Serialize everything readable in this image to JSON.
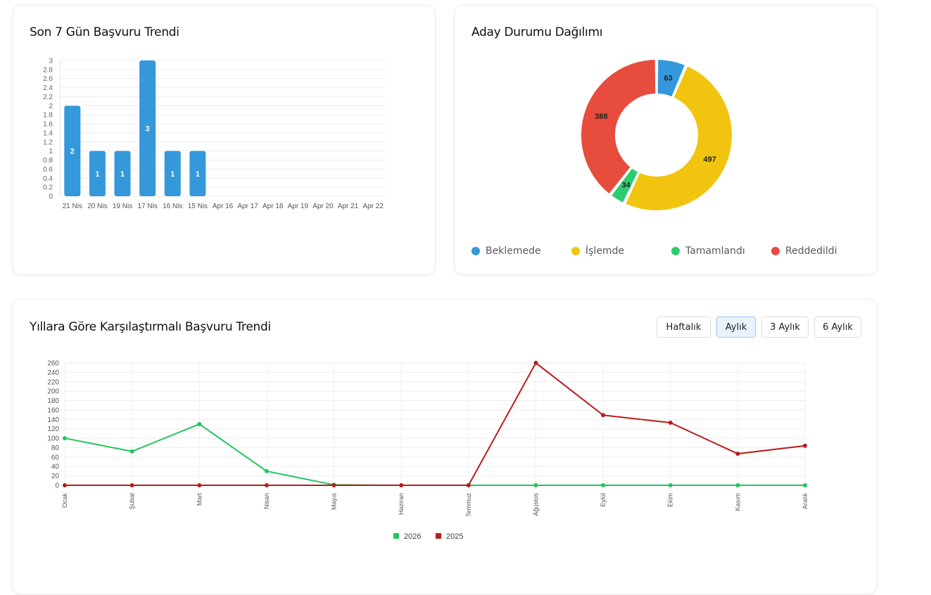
{
  "cards": {
    "trend7": {
      "title": "Son 7 Gün Başvuru Trendi"
    },
    "status": {
      "title": "Aday Durumu Dağılımı"
    },
    "yearly": {
      "title": "Yıllara Göre Karşılaştırmalı Başvuru Trendi",
      "buttons": [
        "Haftalık",
        "Aylık",
        "3 Aylık",
        "6 Aylık"
      ],
      "active_button": "Aylık"
    }
  },
  "chart_data": [
    {
      "type": "bar",
      "categories": [
        "21 Nis",
        "20 Nis",
        "19 Nis",
        "17 Nis",
        "16 Nis",
        "15 Nis",
        "Apr 16",
        "Apr 17",
        "Apr 18",
        "Apr 19",
        "Apr 20",
        "Apr 21",
        "Apr 22"
      ],
      "values": [
        2,
        1,
        1,
        3,
        1,
        1,
        null,
        null,
        null,
        null,
        null,
        null,
        null
      ],
      "ylim": [
        0,
        3
      ],
      "yticks": [
        0,
        0.2,
        0.4,
        0.6,
        0.8,
        1,
        1.2,
        1.4,
        1.6,
        1.8,
        2,
        2.2,
        2.4,
        2.6,
        2.8,
        3
      ],
      "data_labels": true,
      "grid": true,
      "color": "#3498db"
    },
    {
      "type": "pie",
      "donut": true,
      "labels": [
        "Beklemede",
        "İşlemde",
        "Tamamlandı",
        "Reddedildi"
      ],
      "values": [
        63,
        497,
        34,
        388
      ],
      "colors": [
        "#3498db",
        "#f1c40f",
        "#2ecc71",
        "#e74c3c"
      ],
      "legend": "bottom"
    },
    {
      "type": "line",
      "categories": [
        "Ocak",
        "Şubat",
        "Mart",
        "Nisan",
        "Mayıs",
        "Haziran",
        "Temmuz",
        "Ağustos",
        "Eylül",
        "Ekim",
        "Kasım",
        "Aralık"
      ],
      "series": [
        {
          "name": "2026",
          "color": "#22c55e",
          "values": [
            100,
            72,
            130,
            30,
            1,
            0,
            0,
            0,
            0,
            0,
            0,
            0
          ]
        },
        {
          "name": "2025",
          "color": "#b91c1c",
          "values": [
            0,
            0,
            0,
            0,
            0,
            0,
            0,
            260,
            149,
            133,
            67,
            84
          ]
        }
      ],
      "ylim": [
        0,
        260
      ],
      "yticks": [
        0,
        20,
        40,
        60,
        80,
        100,
        120,
        140,
        160,
        180,
        200,
        220,
        240,
        260
      ],
      "grid": true,
      "legend": "bottom"
    }
  ]
}
